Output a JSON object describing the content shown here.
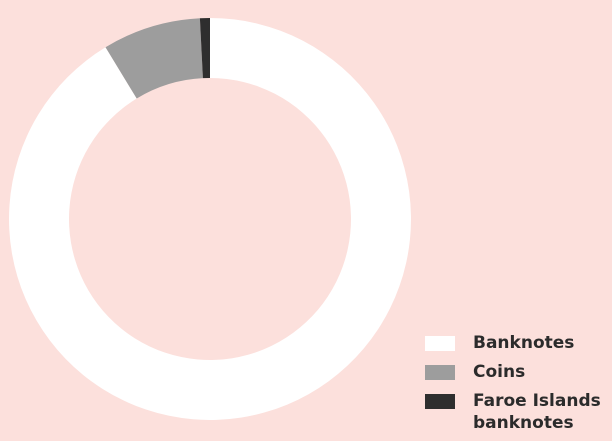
{
  "chart_data": {
    "type": "donut",
    "categories": [
      "Banknotes",
      "Coins",
      "Faroe Islands banknotes"
    ],
    "values": [
      91.3,
      7.9,
      0.8
    ],
    "colors": [
      "#ffffff",
      "#9d9d9d",
      "#2e2e2e"
    ]
  }
}
